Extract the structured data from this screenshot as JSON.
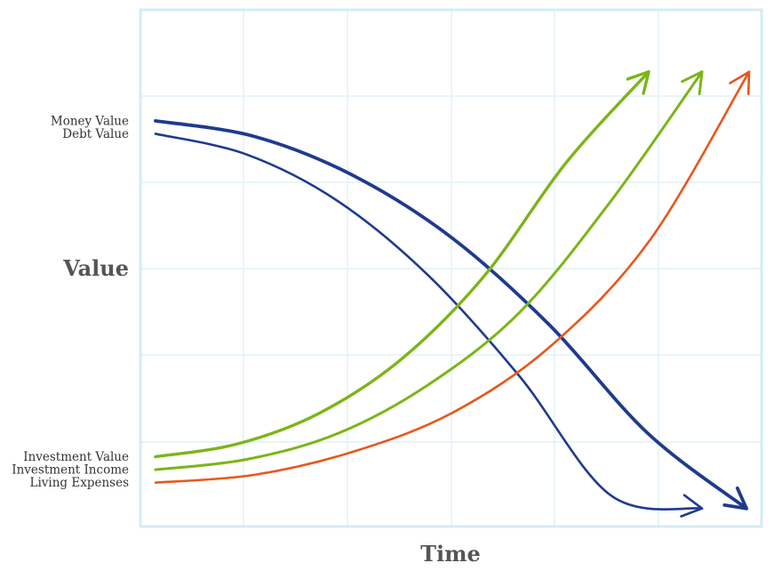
{
  "chart_data": {
    "type": "line",
    "title": "",
    "xlabel": "Time",
    "ylabel": "Value",
    "grid": true,
    "legend": "left-side labels at line starts",
    "x": [
      0,
      1,
      2,
      3,
      4,
      5,
      6
    ],
    "series": [
      {
        "name": "Money Value",
        "color": "#1f3a8f",
        "trend": "decreasing",
        "values": [
          7.85,
          7.55,
          6.8,
          5.6,
          3.9,
          1.8,
          0.35
        ]
      },
      {
        "name": "Debt Value",
        "color": "#1f3a8f",
        "trend": "decreasing",
        "values": [
          7.6,
          7.2,
          6.3,
          4.85,
          2.9,
          0.6,
          0.35
        ]
      },
      {
        "name": "Investment Value",
        "color": "#7cb518",
        "trend": "increasing",
        "values": [
          1.35,
          1.6,
          2.2,
          3.25,
          4.85,
          7.05,
          8.8
        ]
      },
      {
        "name": "Investment Income",
        "color": "#7cb518",
        "trend": "increasing",
        "values": [
          1.1,
          1.3,
          1.8,
          2.75,
          4.15,
          6.3,
          8.8
        ]
      },
      {
        "name": "Living Expenses",
        "color": "#e8571e",
        "trend": "increasing",
        "values": [
          0.85,
          1.0,
          1.45,
          2.2,
          3.5,
          5.55,
          8.8
        ]
      }
    ]
  }
}
